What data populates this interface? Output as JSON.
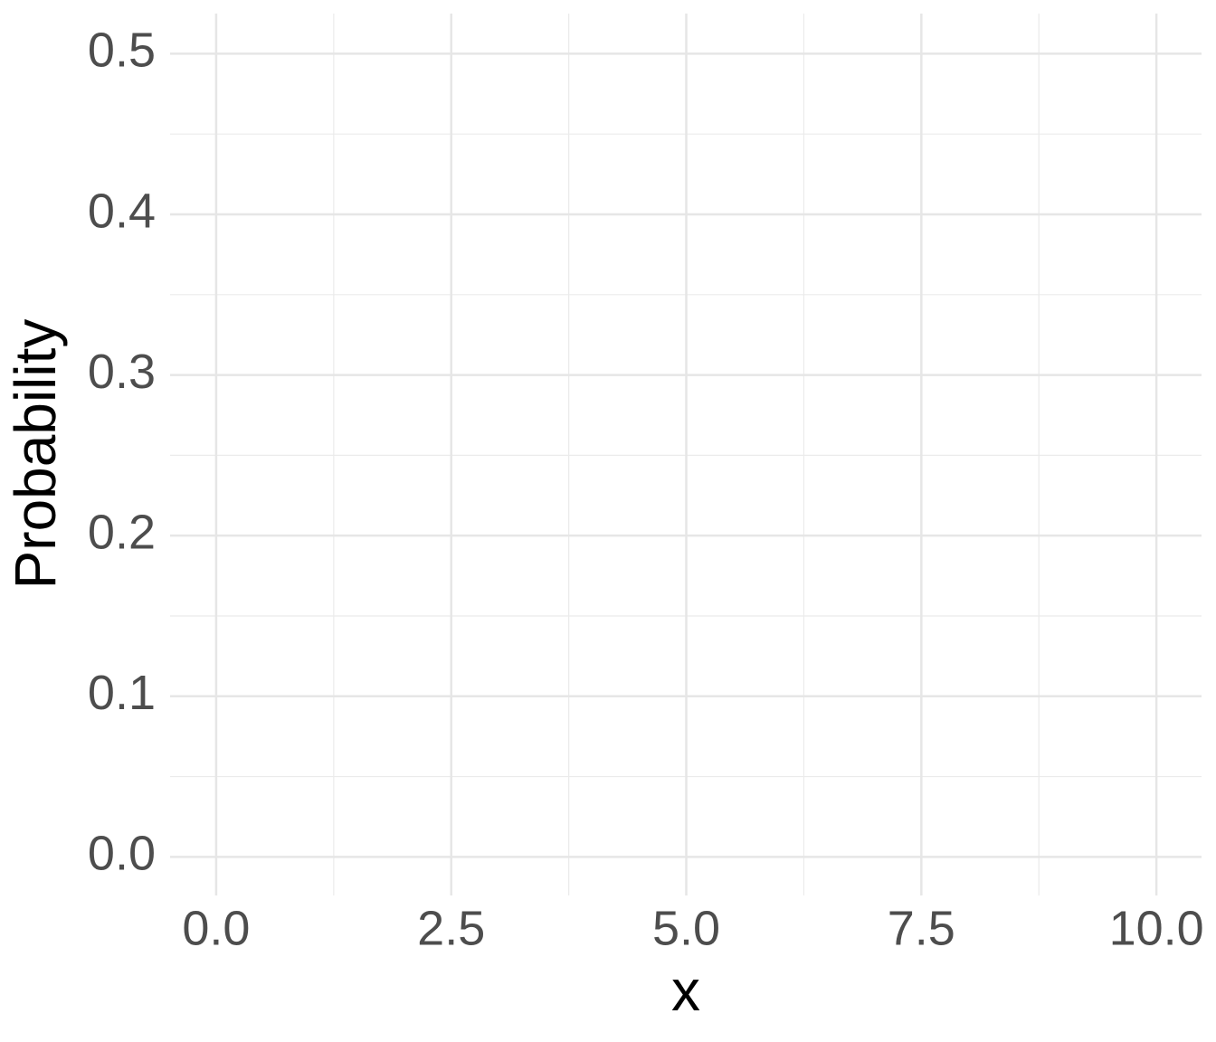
{
  "chart_data": {
    "type": "scatter",
    "x_label": "x",
    "y_label": "Probability",
    "xlim": [
      -0.49,
      10.48
    ],
    "xticks": [
      {
        "value": 0,
        "label": "0.0"
      },
      2.5,
      {
        "value": 5,
        "label": "5.0"
      },
      7.5,
      {
        "value": 10,
        "label": "10.0"
      }
    ],
    "ylim": [
      -0.024,
      0.525
    ],
    "yticks": [
      {
        "value": 0,
        "label": "0.0"
      },
      0.1,
      0.2,
      0.3,
      0.4,
      0.5
    ],
    "grid": true
  }
}
